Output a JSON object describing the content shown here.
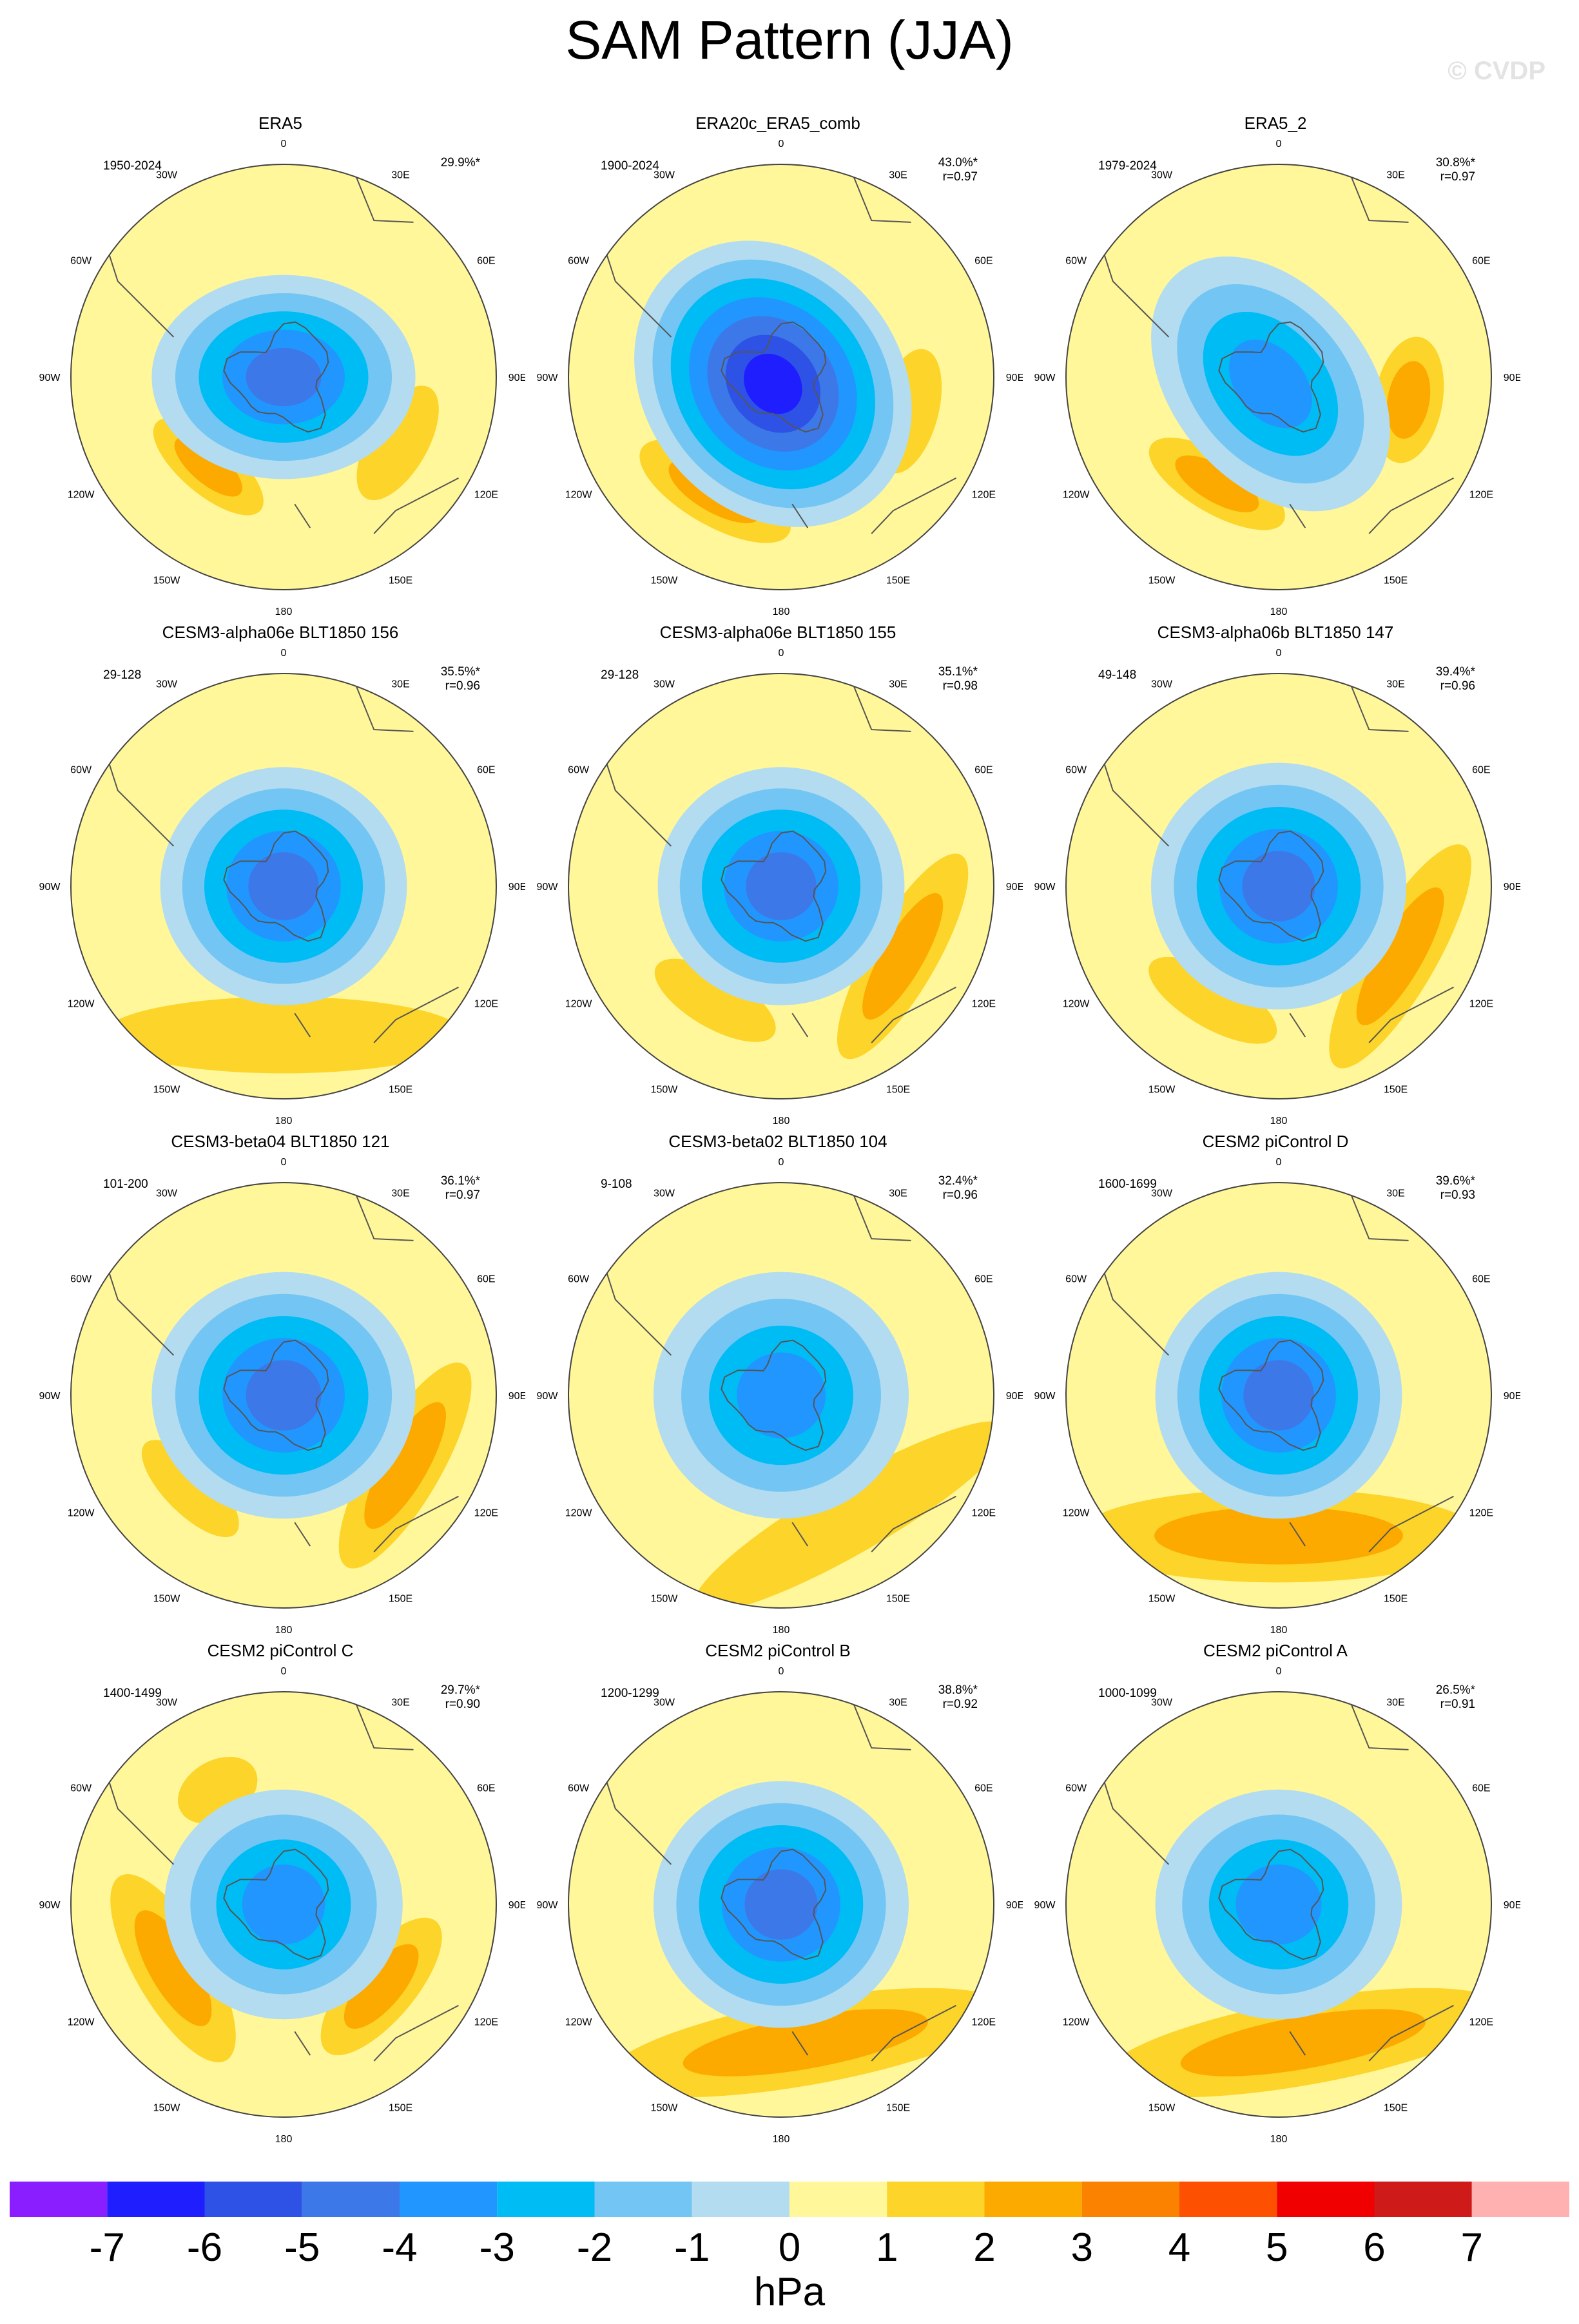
{
  "title": "SAM Pattern (JJA)",
  "watermark": "© CVDP",
  "units": "hPa",
  "colors": {
    "levels": [
      "#8a1eff",
      "#1e1eff",
      "#2e52e6",
      "#3c78e8",
      "#2196ff",
      "#00bcf5",
      "#73c6f3",
      "#b3dcf0",
      "#fff799",
      "#fcd42a",
      "#fcaa00",
      "#fb8200",
      "#fd5000",
      "#f00000",
      "#cf1a1a",
      "#ffb0b0"
    ],
    "ring": "#444444",
    "coast": "#555555"
  },
  "chart_data": {
    "type": "heatmap",
    "title": "SAM Pattern (JJA)",
    "projection": "south-polar stereographic",
    "colorbar_levels": [
      -7,
      -6,
      -5,
      -4,
      -3,
      -2,
      -1,
      0,
      1,
      2,
      3,
      4,
      5,
      6,
      7
    ],
    "colorbar_units": "hPa",
    "longitude_labels": [
      "0",
      "30E",
      "60E",
      "90E",
      "120E",
      "150E",
      "180",
      "150W",
      "120W",
      "90W",
      "60W",
      "30W"
    ],
    "panels": [
      {
        "title": "ERA5",
        "period": "1950-2024",
        "pct": "29.9%*",
        "r": "",
        "features": [
          {
            "kind": "low",
            "lon": 200,
            "r": 0.0,
            "w": 0.62,
            "h": 0.48,
            "peak": -5
          },
          {
            "kind": "high",
            "lon": 120,
            "r": 0.62,
            "w": 0.3,
            "h": 0.14,
            "peak": 1
          },
          {
            "kind": "high",
            "lon": 220,
            "r": 0.55,
            "w": 0.32,
            "h": 0.13,
            "peak": 2
          }
        ]
      },
      {
        "title": "ERA20c_ERA5_comb",
        "period": "1900-2024",
        "pct": "43.0%*",
        "r": "r=0.97",
        "features": [
          {
            "kind": "low",
            "lon": 230,
            "r": 0.05,
            "w": 0.72,
            "h": 0.6,
            "peak": -7
          },
          {
            "kind": "high",
            "lon": 105,
            "r": 0.62,
            "w": 0.3,
            "h": 0.14,
            "peak": 1
          },
          {
            "kind": "high",
            "lon": 210,
            "r": 0.62,
            "w": 0.4,
            "h": 0.16,
            "peak": 2
          }
        ]
      },
      {
        "title": "ERA5_2",
        "period": "1979-2024",
        "pct": "30.8%*",
        "r": "r=0.97",
        "features": [
          {
            "kind": "low",
            "lon": 230,
            "r": 0.05,
            "w": 0.68,
            "h": 0.46,
            "peak": -4
          },
          {
            "kind": "high",
            "lon": 100,
            "r": 0.62,
            "w": 0.3,
            "h": 0.16,
            "peak": 2
          },
          {
            "kind": "high",
            "lon": 210,
            "r": 0.58,
            "w": 0.36,
            "h": 0.14,
            "peak": 2
          }
        ]
      },
      {
        "title": "CESM3-alpha06e BLT1850 156",
        "period": "29-128",
        "pct": "35.5%*",
        "r": "r=0.96",
        "features": [
          {
            "kind": "low",
            "lon": 0,
            "r": 0.0,
            "w": 0.58,
            "h": 0.56,
            "peak": -5
          },
          {
            "kind": "high",
            "lon": 180,
            "r": 0.7,
            "w": 0.85,
            "h": 0.18,
            "peak": 1
          }
        ]
      },
      {
        "title": "CESM3-alpha06e BLT1850 155",
        "period": "29-128",
        "pct": "35.1%*",
        "r": "r=0.98",
        "features": [
          {
            "kind": "low",
            "lon": 0,
            "r": 0.0,
            "w": 0.58,
            "h": 0.56,
            "peak": -5
          },
          {
            "kind": "high",
            "lon": 120,
            "r": 0.66,
            "w": 0.55,
            "h": 0.16,
            "peak": 2
          },
          {
            "kind": "high",
            "lon": 210,
            "r": 0.62,
            "w": 0.32,
            "h": 0.13,
            "peak": 1
          }
        ]
      },
      {
        "title": "CESM3-alpha06b BLT1850 147",
        "period": "49-148",
        "pct": "39.4%*",
        "r": "r=0.96",
        "features": [
          {
            "kind": "low",
            "lon": 0,
            "r": 0.0,
            "w": 0.6,
            "h": 0.58,
            "peak": -5
          },
          {
            "kind": "high",
            "lon": 120,
            "r": 0.66,
            "w": 0.6,
            "h": 0.17,
            "peak": 2
          },
          {
            "kind": "high",
            "lon": 210,
            "r": 0.62,
            "w": 0.34,
            "h": 0.13,
            "peak": 1
          }
        ]
      },
      {
        "title": "CESM3-beta04 BLT1850 121",
        "period": "101-200",
        "pct": "36.1%*",
        "r": "r=0.97",
        "features": [
          {
            "kind": "low",
            "lon": 0,
            "r": 0.0,
            "w": 0.62,
            "h": 0.58,
            "peak": -5
          },
          {
            "kind": "high",
            "lon": 120,
            "r": 0.66,
            "w": 0.55,
            "h": 0.17,
            "peak": 2
          },
          {
            "kind": "high",
            "lon": 225,
            "r": 0.62,
            "w": 0.3,
            "h": 0.12,
            "peak": 1
          }
        ]
      },
      {
        "title": "CESM3-beta02 BLT1850 104",
        "period": "9-108",
        "pct": "32.4%*",
        "r": "r=0.96",
        "features": [
          {
            "kind": "low",
            "lon": 0,
            "r": 0.0,
            "w": 0.6,
            "h": 0.58,
            "peak": -4
          },
          {
            "kind": "high",
            "lon": 150,
            "r": 0.66,
            "w": 0.85,
            "h": 0.17,
            "peak": 1
          }
        ]
      },
      {
        "title": "CESM2 piControl D",
        "period": "1600-1699",
        "pct": "39.6%*",
        "r": "r=0.93",
        "features": [
          {
            "kind": "low",
            "lon": 0,
            "r": 0.0,
            "w": 0.58,
            "h": 0.58,
            "peak": -5
          },
          {
            "kind": "high",
            "lon": 180,
            "r": 0.66,
            "w": 0.95,
            "h": 0.22,
            "peak": 2
          }
        ]
      },
      {
        "title": "CESM2 piControl C",
        "period": "1400-1499",
        "pct": "29.7%*",
        "r": "r=0.90",
        "features": [
          {
            "kind": "low",
            "lon": 0,
            "r": 0.0,
            "w": 0.56,
            "h": 0.54,
            "peak": -4
          },
          {
            "kind": "high",
            "lon": 240,
            "r": 0.6,
            "w": 0.5,
            "h": 0.18,
            "peak": 2
          },
          {
            "kind": "high",
            "lon": 130,
            "r": 0.6,
            "w": 0.4,
            "h": 0.16,
            "peak": 2
          },
          {
            "kind": "high",
            "lon": 330,
            "r": 0.62,
            "w": 0.2,
            "h": 0.14,
            "peak": 1
          }
        ]
      },
      {
        "title": "CESM2 piControl B",
        "period": "1200-1299",
        "pct": "38.8%*",
        "r": "r=0.92",
        "features": [
          {
            "kind": "low",
            "lon": 0,
            "r": 0.0,
            "w": 0.6,
            "h": 0.58,
            "peak": -5
          },
          {
            "kind": "high",
            "lon": 170,
            "r": 0.66,
            "w": 0.95,
            "h": 0.2,
            "peak": 2
          }
        ]
      },
      {
        "title": "CESM2 piControl A",
        "period": "1000-1099",
        "pct": "26.5%*",
        "r": "r=0.91",
        "features": [
          {
            "kind": "low",
            "lon": 0,
            "r": 0.0,
            "w": 0.58,
            "h": 0.54,
            "peak": -4
          },
          {
            "kind": "high",
            "lon": 170,
            "r": 0.66,
            "w": 0.95,
            "h": 0.2,
            "peak": 2
          }
        ]
      }
    ]
  }
}
